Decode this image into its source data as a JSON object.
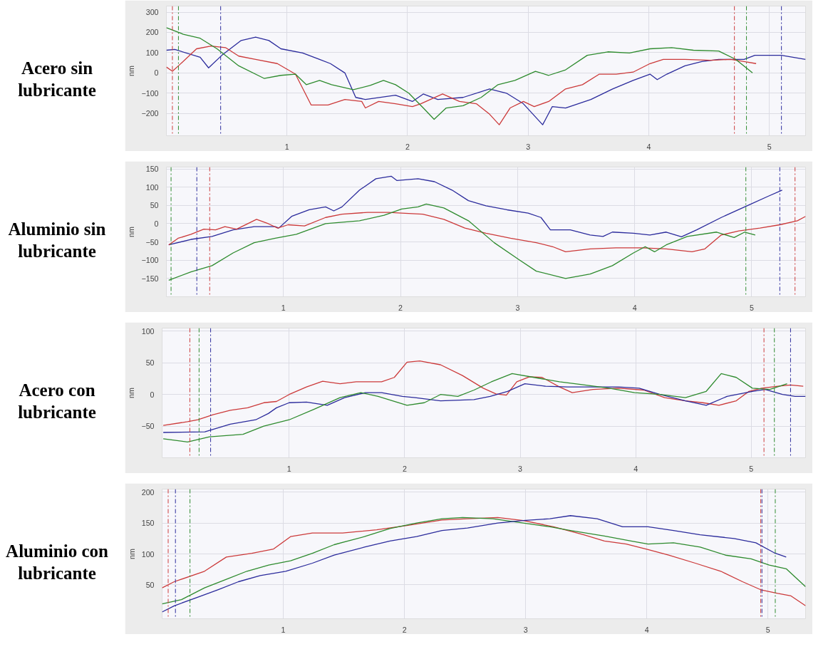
{
  "chart_data": [
    {
      "type": "line",
      "title": "Acero sin lubricante",
      "ylabel": "nm",
      "xlim": [
        0,
        5.3
      ],
      "ylim": [
        -310,
        330
      ],
      "xticks": [
        1,
        2,
        3,
        4,
        5
      ],
      "yticks": [
        300,
        200,
        100,
        0,
        -100,
        -200
      ],
      "grid": true,
      "series": [
        {
          "color": "#2b2b9c",
          "x": [
            0,
            0.07,
            0.28,
            0.35,
            0.46,
            0.62,
            0.74,
            0.85,
            0.95,
            1.13,
            1.27,
            1.36,
            1.48,
            1.57,
            1.65,
            1.9,
            2.04,
            2.13,
            2.25,
            2.46,
            2.68,
            2.82,
            2.96,
            3.12,
            3.2,
            3.31,
            3.52,
            3.7,
            3.87,
            4.01,
            4.07,
            4.15,
            4.3,
            4.44,
            4.58,
            4.72,
            4.79,
            4.88,
            5.0,
            5.1,
            5.3
          ],
          "values": [
            112,
            116,
            77,
            25,
            87,
            160,
            177,
            160,
            119,
            98,
            67,
            46,
            0,
            -121,
            -131,
            -110,
            -141,
            -104,
            -131,
            -121,
            -79,
            -100,
            -152,
            -256,
            -166,
            -173,
            -131,
            -79,
            -37,
            -6,
            -33,
            -6,
            35,
            56,
            67,
            67,
            67,
            87,
            87,
            87,
            67
          ]
        },
        {
          "color": "#cc3a3a",
          "x": [
            0,
            0.05,
            0.1,
            0.25,
            0.37,
            0.49,
            0.6,
            0.74,
            0.92,
            1.07,
            1.2,
            1.34,
            1.48,
            1.62,
            1.65,
            1.76,
            1.9,
            2.04,
            2.11,
            2.29,
            2.43,
            2.57,
            2.68,
            2.76,
            2.85,
            2.96,
            3.05,
            3.17,
            3.31,
            3.45,
            3.59,
            3.73,
            3.87,
            4.01,
            4.12,
            4.3,
            4.51,
            4.68,
            4.79,
            4.89
          ],
          "values": [
            29,
            8,
            35,
            119,
            133,
            125,
            83,
            67,
            46,
            -6,
            -158,
            -158,
            -131,
            -141,
            -173,
            -141,
            -152,
            -166,
            -152,
            -104,
            -141,
            -152,
            -204,
            -256,
            -173,
            -141,
            -166,
            -141,
            -79,
            -58,
            -6,
            -6,
            4,
            46,
            67,
            67,
            62,
            67,
            56,
            46
          ]
        },
        {
          "color": "#2e8b2e",
          "x": [
            0,
            0.14,
            0.28,
            0.42,
            0.6,
            0.81,
            0.95,
            1.07,
            1.16,
            1.27,
            1.37,
            1.55,
            1.69,
            1.8,
            1.9,
            2.01,
            2.13,
            2.22,
            2.32,
            2.46,
            2.61,
            2.75,
            2.89,
            3.06,
            3.17,
            3.31,
            3.49,
            3.66,
            3.84,
            4.01,
            4.19,
            4.37,
            4.58,
            4.72,
            4.86
          ],
          "values": [
            223,
            191,
            171,
            119,
            35,
            -27,
            -12,
            -6,
            -58,
            -37,
            -58,
            -83,
            -62,
            -37,
            -58,
            -100,
            -173,
            -229,
            -173,
            -162,
            -121,
            -58,
            -37,
            8,
            -12,
            15,
            87,
            104,
            98,
            119,
            125,
            112,
            108,
            67,
            0
          ]
        }
      ],
      "ref_lines": [
        {
          "axis": "x",
          "value": 0.05,
          "color": "#cc3a3a",
          "line_style": "dashed"
        },
        {
          "axis": "x",
          "value": 0.1,
          "color": "#2e8b2e",
          "line_style": "dashed"
        },
        {
          "axis": "x",
          "value": 0.45,
          "color": "#2b2b9c",
          "line_style": "dashed"
        },
        {
          "axis": "x",
          "value": 4.71,
          "color": "#cc3a3a",
          "line_style": "dashed"
        },
        {
          "axis": "x",
          "value": 4.81,
          "color": "#2e8b2e",
          "line_style": "dashed"
        },
        {
          "axis": "x",
          "value": 5.1,
          "color": "#2b2b9c",
          "line_style": "dashed"
        }
      ]
    },
    {
      "type": "line",
      "title": "Aluminio sin lubricante",
      "ylabel": "nm",
      "xlim": [
        0,
        5.46
      ],
      "ylim": [
        -200,
        155
      ],
      "xticks": [
        1,
        2,
        3,
        4,
        5
      ],
      "yticks": [
        150,
        100,
        50,
        0,
        -50,
        -100,
        -150
      ],
      "grid": true,
      "series": [
        {
          "color": "#2b2b9c",
          "x": [
            0.02,
            0.21,
            0.39,
            0.57,
            0.75,
            0.93,
            0.96,
            1.07,
            1.22,
            1.36,
            1.43,
            1.5,
            1.65,
            1.79,
            1.92,
            1.97,
            2.15,
            2.29,
            2.44,
            2.58,
            2.73,
            2.91,
            3.09,
            3.2,
            3.28,
            3.45,
            3.62,
            3.73,
            3.81,
            3.99,
            4.13,
            4.27,
            4.4,
            4.53,
            4.74,
            4.96,
            5.14,
            5.26
          ],
          "values": [
            -58,
            -43,
            -35,
            -17,
            -8,
            -8,
            -12,
            20,
            38,
            46,
            35,
            46,
            92,
            123,
            130,
            118,
            123,
            115,
            92,
            63,
            49,
            38,
            29,
            17,
            -17,
            -17,
            -31,
            -35,
            -23,
            -26,
            -31,
            -23,
            -36,
            -17,
            17,
            49,
            75,
            92
          ]
        },
        {
          "color": "#cc3a3a",
          "x": [
            0.02,
            0.1,
            0.21,
            0.32,
            0.42,
            0.5,
            0.6,
            0.77,
            0.87,
            0.95,
            1.04,
            1.18,
            1.36,
            1.5,
            1.72,
            1.9,
            2.01,
            2.19,
            2.37,
            2.55,
            2.73,
            2.94,
            3.16,
            3.3,
            3.41,
            3.62,
            3.84,
            4.06,
            4.27,
            4.49,
            4.6,
            4.74,
            4.89,
            5.07,
            5.24,
            5.39,
            5.46
          ],
          "values": [
            -58,
            -40,
            -29,
            -15,
            -17,
            -8,
            -15,
            12,
            0,
            -12,
            -3,
            -6,
            17,
            26,
            31,
            31,
            29,
            26,
            12,
            -12,
            -26,
            -40,
            -52,
            -63,
            -77,
            -69,
            -66,
            -66,
            -69,
            -77,
            -69,
            -31,
            -20,
            -12,
            -3,
            8,
            20
          ]
        },
        {
          "color": "#2e8b2e",
          "x": [
            0.02,
            0.21,
            0.39,
            0.57,
            0.75,
            0.93,
            1.11,
            1.36,
            1.65,
            1.86,
            2.01,
            2.15,
            2.22,
            2.37,
            2.58,
            2.8,
            3.01,
            3.16,
            3.41,
            3.62,
            3.81,
            3.99,
            4.09,
            4.17,
            4.27,
            4.45,
            4.7,
            4.85,
            4.94,
            5.03
          ],
          "values": [
            -155,
            -132,
            -115,
            -80,
            -52,
            -40,
            -29,
            0,
            8,
            23,
            40,
            46,
            54,
            43,
            8,
            -52,
            -98,
            -130,
            -150,
            -138,
            -115,
            -80,
            -63,
            -77,
            -58,
            -35,
            -23,
            -38,
            -23,
            -31
          ]
        }
      ],
      "ref_lines": [
        {
          "axis": "x",
          "value": 0.04,
          "color": "#2e8b2e",
          "line_style": "dashed"
        },
        {
          "axis": "x",
          "value": 0.26,
          "color": "#2b2b9c",
          "line_style": "dashed"
        },
        {
          "axis": "x",
          "value": 0.37,
          "color": "#cc3a3a",
          "line_style": "dashed"
        },
        {
          "axis": "x",
          "value": 4.95,
          "color": "#2e8b2e",
          "line_style": "dashed"
        },
        {
          "axis": "x",
          "value": 5.24,
          "color": "#2b2b9c",
          "line_style": "dashed"
        },
        {
          "axis": "x",
          "value": 5.37,
          "color": "#cc3a3a",
          "line_style": "dashed"
        }
      ]
    },
    {
      "type": "line",
      "title": "Acero con lubricante",
      "ylabel": "nm",
      "xlim": [
        -0.1,
        5.47
      ],
      "ylim": [
        -100,
        105
      ],
      "xticks": [
        1,
        2,
        3,
        4,
        5
      ],
      "yticks": [
        100,
        50,
        0,
        -50
      ],
      "grid": true,
      "series": [
        {
          "color": "#cc3a3a",
          "x": [
            -0.09,
            0.12,
            0.21,
            0.34,
            0.49,
            0.64,
            0.78,
            0.89,
            1.0,
            1.15,
            1.29,
            1.44,
            1.58,
            1.8,
            1.91,
            2.02,
            2.13,
            2.31,
            2.5,
            2.68,
            2.79,
            2.88,
            2.97,
            3.08,
            3.19,
            3.34,
            3.45,
            3.63,
            3.85,
            4.07,
            4.25,
            4.43,
            4.58,
            4.72,
            4.87,
            4.98,
            5.09,
            5.23,
            5.34,
            5.45
          ],
          "values": [
            -49,
            -43,
            -40,
            -32,
            -25,
            -21,
            -13,
            -11,
            0,
            12,
            21,
            17,
            20,
            20,
            27,
            51,
            53,
            47,
            30,
            10,
            1,
            -1,
            20,
            28,
            27,
            12,
            3,
            8,
            10,
            7,
            -5,
            -10,
            -13,
            -17,
            -10,
            5,
            10,
            13,
            15,
            13
          ]
        },
        {
          "color": "#2b2b9c",
          "x": [
            -0.09,
            0.27,
            0.49,
            0.71,
            0.82,
            0.89,
            1.0,
            1.15,
            1.33,
            1.48,
            1.66,
            1.8,
            1.98,
            2.09,
            2.31,
            2.6,
            2.74,
            2.89,
            3.04,
            3.22,
            3.41,
            3.63,
            3.85,
            4.03,
            4.21,
            4.43,
            4.61,
            4.79,
            5.01,
            5.12,
            5.27,
            5.38,
            5.47
          ],
          "values": [
            -60,
            -59,
            -47,
            -40,
            -30,
            -21,
            -13,
            -12,
            -17,
            -5,
            3,
            3,
            -3,
            -5,
            -10,
            -8,
            -3,
            5,
            17,
            13,
            12,
            12,
            12,
            10,
            0,
            -10,
            -17,
            -3,
            5,
            8,
            0,
            -3,
            -3
          ]
        },
        {
          "color": "#2e8b2e",
          "x": [
            -0.09,
            0.12,
            0.31,
            0.6,
            0.78,
            1.0,
            1.22,
            1.44,
            1.62,
            1.77,
            2.02,
            2.17,
            2.31,
            2.46,
            2.6,
            2.75,
            2.93,
            3.12,
            3.34,
            3.56,
            3.77,
            3.99,
            4.21,
            4.43,
            4.61,
            4.74,
            4.87,
            5.01,
            5.16,
            5.31
          ],
          "values": [
            -70,
            -75,
            -67,
            -63,
            -50,
            -40,
            -23,
            -5,
            3,
            -3,
            -17,
            -13,
            0,
            -3,
            7,
            20,
            33,
            27,
            20,
            15,
            10,
            3,
            0,
            -5,
            5,
            33,
            27,
            10,
            8,
            17
          ]
        }
      ],
      "ref_lines": [
        {
          "axis": "x",
          "value": 0.14,
          "color": "#cc3a3a",
          "line_style": "dashed"
        },
        {
          "axis": "x",
          "value": 0.22,
          "color": "#2e8b2e",
          "line_style": "dashed"
        },
        {
          "axis": "x",
          "value": 0.32,
          "color": "#2b2b9c",
          "line_style": "dashed"
        },
        {
          "axis": "x",
          "value": 5.11,
          "color": "#cc3a3a",
          "line_style": "dashed"
        },
        {
          "axis": "x",
          "value": 5.2,
          "color": "#2e8b2e",
          "line_style": "dashed"
        },
        {
          "axis": "x",
          "value": 5.34,
          "color": "#2b2b9c",
          "line_style": "dashed"
        }
      ]
    },
    {
      "type": "line",
      "title": "Aluminio con lubricante",
      "ylabel": "nm",
      "xlim": [
        0,
        5.31
      ],
      "ylim": [
        -5,
        205
      ],
      "xticks": [
        1,
        2,
        3,
        4,
        5
      ],
      "yticks": [
        200,
        150,
        100,
        50
      ],
      "grid": true,
      "series": [
        {
          "color": "#cc3a3a",
          "x": [
            0,
            0.1,
            0.35,
            0.53,
            0.74,
            0.92,
            1.06,
            1.24,
            1.49,
            1.77,
            2.02,
            2.31,
            2.52,
            2.77,
            2.98,
            3.23,
            3.48,
            3.65,
            3.83,
            4.01,
            4.18,
            4.4,
            4.61,
            4.79,
            4.94,
            5.08,
            5.19,
            5.31
          ],
          "values": [
            45,
            55,
            72,
            95,
            101,
            108,
            128,
            134,
            134,
            139,
            146,
            155,
            157,
            159,
            154,
            144,
            131,
            121,
            116,
            107,
            98,
            85,
            72,
            55,
            42,
            36,
            32,
            16
          ]
        },
        {
          "color": "#2e8b2e",
          "x": [
            0,
            0.16,
            0.35,
            0.53,
            0.7,
            0.88,
            1.06,
            1.24,
            1.42,
            1.67,
            1.88,
            2.1,
            2.31,
            2.48,
            2.73,
            2.98,
            3.2,
            3.37,
            3.65,
            3.87,
            4.01,
            4.22,
            4.44,
            4.65,
            4.86,
            5.01,
            5.15,
            5.31
          ],
          "values": [
            19,
            26,
            45,
            59,
            72,
            82,
            89,
            101,
            115,
            128,
            141,
            150,
            157,
            159,
            157,
            150,
            144,
            138,
            129,
            121,
            116,
            118,
            111,
            98,
            92,
            82,
            76,
            47
          ]
        },
        {
          "color": "#2b2b9c",
          "x": [
            0,
            0.1,
            0.28,
            0.46,
            0.63,
            0.81,
            1.02,
            1.24,
            1.42,
            1.67,
            1.88,
            2.1,
            2.31,
            2.52,
            2.77,
            2.98,
            3.2,
            3.37,
            3.59,
            3.8,
            4.01,
            4.22,
            4.44,
            4.72,
            4.9,
            5.05,
            5.15
          ],
          "values": [
            6,
            16,
            29,
            42,
            55,
            65,
            72,
            85,
            98,
            111,
            121,
            128,
            138,
            142,
            150,
            154,
            157,
            162,
            157,
            144,
            144,
            138,
            131,
            125,
            118,
            102,
            95
          ]
        }
      ],
      "ref_lines": [
        {
          "axis": "x",
          "value": 0.05,
          "color": "#cc3a3a",
          "line_style": "dashed"
        },
        {
          "axis": "x",
          "value": 0.11,
          "color": "#2b2b9c",
          "line_style": "dashed"
        },
        {
          "axis": "x",
          "value": 0.23,
          "color": "#2e8b2e",
          "line_style": "dashed"
        },
        {
          "axis": "x",
          "value": 4.94,
          "color": "#cc3a3a",
          "line_style": "dashed"
        },
        {
          "axis": "x",
          "value": 4.95,
          "color": "#2b2b9c",
          "line_style": "dashed"
        },
        {
          "axis": "x",
          "value": 5.06,
          "color": "#2e8b2e",
          "line_style": "dashed"
        }
      ]
    }
  ]
}
